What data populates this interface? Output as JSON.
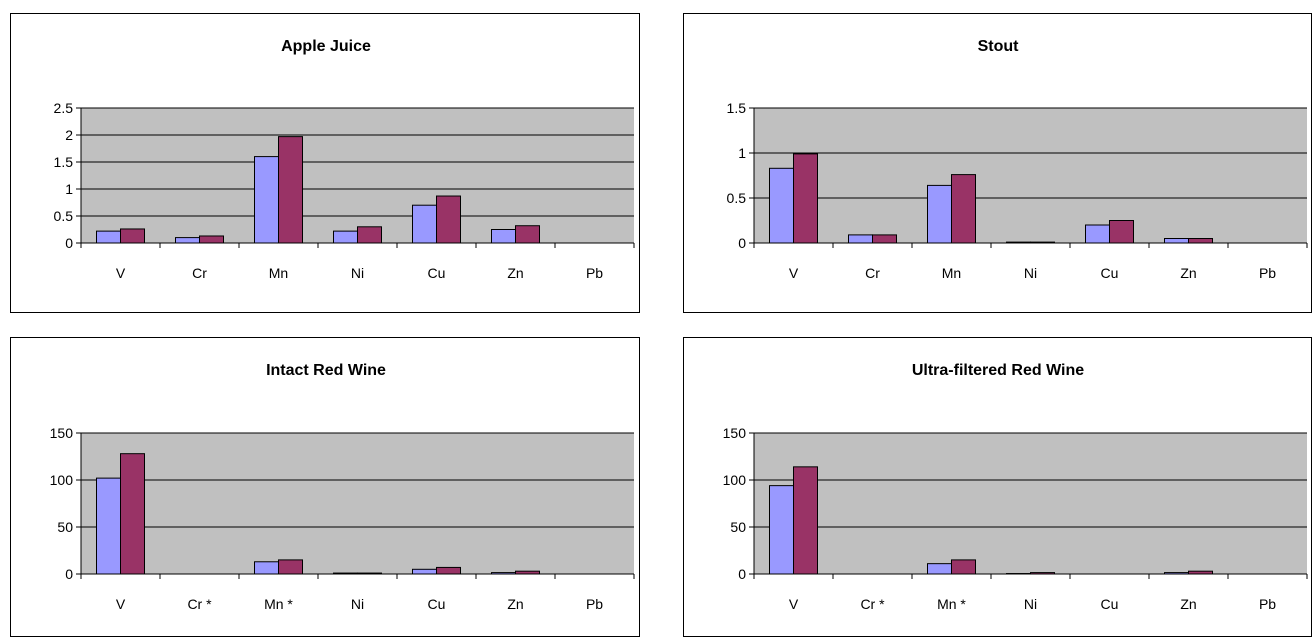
{
  "colors": {
    "plot_area": "#c0c0c0",
    "series_1": "#9999ff",
    "series_2": "#993366",
    "gridline": "#000000",
    "axis": "#000000"
  },
  "chart_data": [
    {
      "type": "bar",
      "title": "Apple Juice",
      "categories": [
        "V",
        "Cr",
        "Mn",
        "Ni",
        "Cu",
        "Zn",
        "Pb"
      ],
      "series": [
        {
          "values": [
            0.22,
            0.1,
            1.6,
            0.22,
            0.7,
            0.25,
            0
          ]
        },
        {
          "values": [
            0.26,
            0.13,
            1.97,
            0.3,
            0.87,
            0.32,
            0
          ]
        }
      ],
      "yticks": [
        "0",
        "0.5",
        "1",
        "1.5",
        "2",
        "2.5"
      ],
      "ylim": [
        0,
        2.5
      ],
      "grid": true,
      "legend": "none"
    },
    {
      "type": "bar",
      "title": "Stout",
      "categories": [
        "V",
        "Cr",
        "Mn",
        "Ni",
        "Cu",
        "Zn",
        "Pb"
      ],
      "series": [
        {
          "values": [
            0.83,
            0.09,
            0.64,
            0.01,
            0.2,
            0.05,
            0
          ]
        },
        {
          "values": [
            0.99,
            0.09,
            0.76,
            0.01,
            0.25,
            0.05,
            0
          ]
        }
      ],
      "yticks": [
        "0",
        "0.5",
        "1",
        "1.5"
      ],
      "ylim": [
        0,
        1.5
      ],
      "grid": true,
      "legend": "none"
    },
    {
      "type": "bar",
      "title": "Intact Red Wine",
      "categories": [
        "V",
        "Cr *",
        "Mn *",
        "Ni",
        "Cu",
        "Zn",
        "Pb"
      ],
      "series": [
        {
          "values": [
            102,
            0,
            13,
            1,
            5,
            1.5,
            0
          ]
        },
        {
          "values": [
            128,
            0,
            15,
            1,
            7,
            3,
            0
          ]
        }
      ],
      "yticks": [
        "0",
        "50",
        "100",
        "150"
      ],
      "ylim": [
        0,
        150
      ],
      "grid": true,
      "legend": "none"
    },
    {
      "type": "bar",
      "title": "Ultra-filtered Red Wine",
      "categories": [
        "V",
        "Cr *",
        "Mn *",
        "Ni",
        "Cu",
        "Zn",
        "Pb"
      ],
      "series": [
        {
          "values": [
            94,
            0,
            11,
            0.5,
            0,
            1.5,
            0
          ]
        },
        {
          "values": [
            114,
            0,
            15,
            1.5,
            0,
            3,
            0
          ]
        }
      ],
      "yticks": [
        "0",
        "50",
        "100",
        "150"
      ],
      "ylim": [
        0,
        150
      ],
      "grid": true,
      "legend": "none"
    }
  ]
}
